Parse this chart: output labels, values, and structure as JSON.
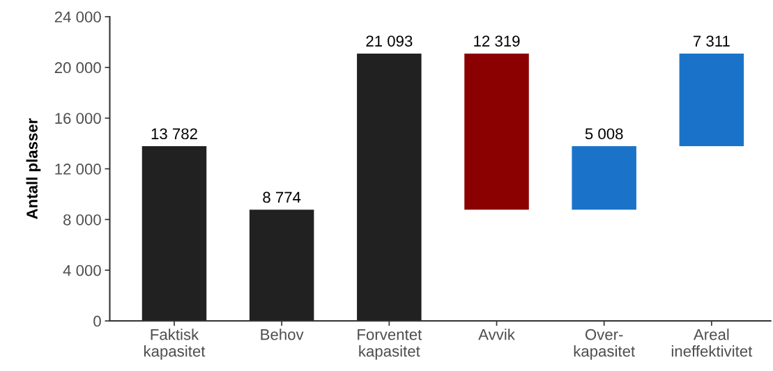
{
  "chart_data": {
    "type": "bar",
    "ylabel": "Antall plasser",
    "categories": [
      "Faktisk\nkapasitet",
      "Behov",
      "Forventet\nkapasitet",
      "Avvik",
      "Over-\nkapasitet",
      "Areal\nineffektivitet"
    ],
    "values": [
      13782,
      8774,
      21093,
      12319,
      5008,
      7311
    ],
    "base": [
      0,
      0,
      0,
      8774,
      8774,
      13782
    ],
    "colors": [
      "#212121",
      "#212121",
      "#212121",
      "#8b0000",
      "#1a73c9",
      "#1a73c9"
    ],
    "value_labels": [
      "13 782",
      "8 774",
      "21 093",
      "12 319",
      "5 008",
      "7 311"
    ],
    "ylim": [
      0,
      24000
    ],
    "yticks": [
      0,
      {
        "value": 4000,
        "label": "4 000"
      },
      {
        "value": 8000,
        "label": "8 000"
      },
      {
        "value": 12000,
        "label": "12 000"
      },
      {
        "value": 16000,
        "label": "16 000"
      },
      {
        "value": 20000,
        "label": "20 000"
      },
      {
        "value": 24000,
        "label": "24 000"
      }
    ],
    "grid": false
  }
}
